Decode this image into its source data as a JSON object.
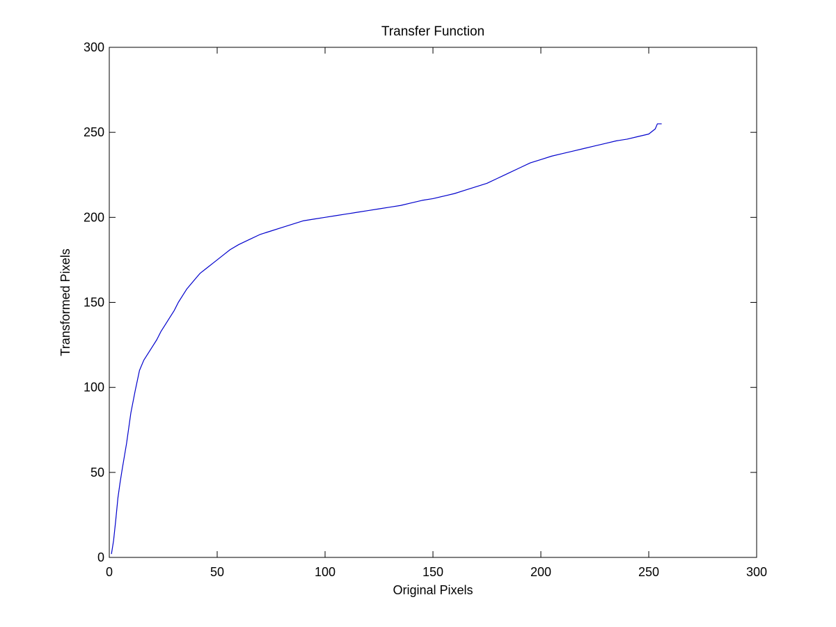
{
  "chart_data": {
    "type": "line",
    "title": "Transfer Function",
    "xlabel": "Original Pixels",
    "ylabel": "Transformed Pixels",
    "xlim": [
      0,
      300
    ],
    "ylim": [
      0,
      300
    ],
    "xticks": [
      0,
      50,
      100,
      150,
      200,
      250,
      300
    ],
    "yticks": [
      0,
      50,
      100,
      150,
      200,
      250,
      300
    ],
    "grid": false,
    "legend": "none",
    "line_color": "#0000cc",
    "series": [
      {
        "x": [
          1,
          2,
          3,
          4,
          5,
          6,
          8,
          10,
          12,
          14,
          16,
          17,
          18,
          20,
          22,
          24,
          26,
          28,
          30,
          32,
          34,
          36,
          38,
          40,
          42,
          45,
          48,
          50,
          53,
          56,
          60,
          65,
          70,
          75,
          80,
          85,
          90,
          95,
          100,
          105,
          110,
          115,
          120,
          125,
          130,
          135,
          140,
          145,
          150,
          155,
          160,
          165,
          170,
          175,
          180,
          185,
          190,
          195,
          200,
          205,
          210,
          215,
          220,
          225,
          230,
          235,
          240,
          245,
          250,
          253,
          254,
          255,
          256
        ],
        "y": [
          2,
          10,
          22,
          35,
          44,
          52,
          67,
          85,
          98,
          110,
          116,
          118,
          120,
          124,
          128,
          133,
          137,
          141,
          145,
          150,
          154,
          158,
          161,
          164,
          167,
          170,
          173,
          175,
          178,
          181,
          184,
          187,
          190,
          192,
          194,
          196,
          198,
          199,
          200,
          201,
          202,
          203,
          204,
          205,
          206,
          207,
          208.5,
          210,
          211,
          212.5,
          214,
          216,
          218,
          220,
          223,
          226,
          229,
          232,
          234,
          236,
          237.5,
          239,
          240.5,
          242,
          243.5,
          245,
          246,
          247.5,
          249,
          252,
          255,
          255,
          255
        ]
      }
    ]
  }
}
